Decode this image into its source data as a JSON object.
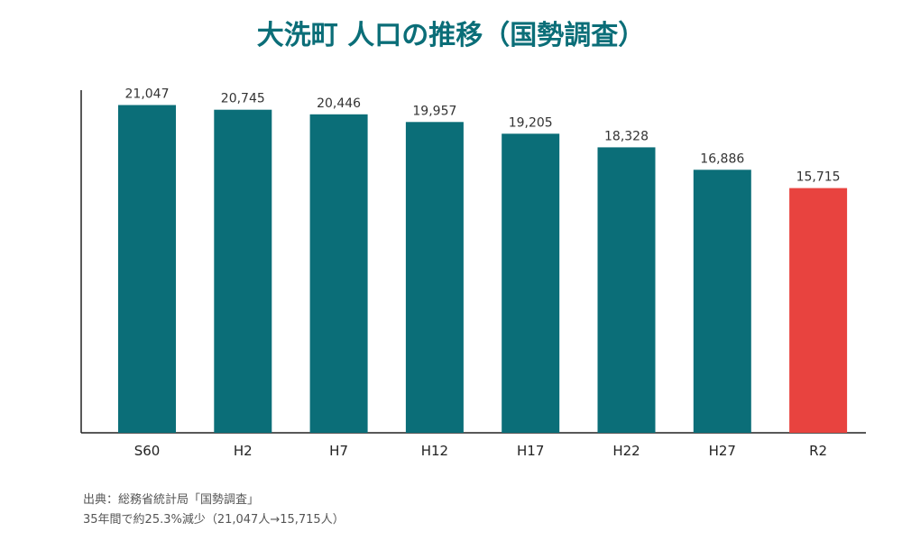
{
  "chart_data": {
    "type": "bar",
    "title": "大洗町 人口の推移（国勢調査）",
    "categories": [
      "S60",
      "H2",
      "H7",
      "H12",
      "H17",
      "H22",
      "H27",
      "R2"
    ],
    "values": [
      21047,
      20745,
      20446,
      19957,
      19205,
      18328,
      16886,
      15715
    ],
    "value_labels": [
      "21,047",
      "20,745",
      "20,446",
      "19,957",
      "19,205",
      "18,328",
      "16,886",
      "15,715"
    ],
    "xlabel": "",
    "ylabel": "",
    "ylim": [
      0,
      22000
    ],
    "grid": false,
    "legend": "none",
    "colors": {
      "default": "#0b6e78",
      "highlight": "#e8433f",
      "highlight_category": "R2",
      "title": "#0b6e78"
    }
  },
  "notes": {
    "source": "出典：総務省統計局「国勢調査」",
    "summary": "35年間で約25.3%減少（21,047人→15,715人）"
  }
}
